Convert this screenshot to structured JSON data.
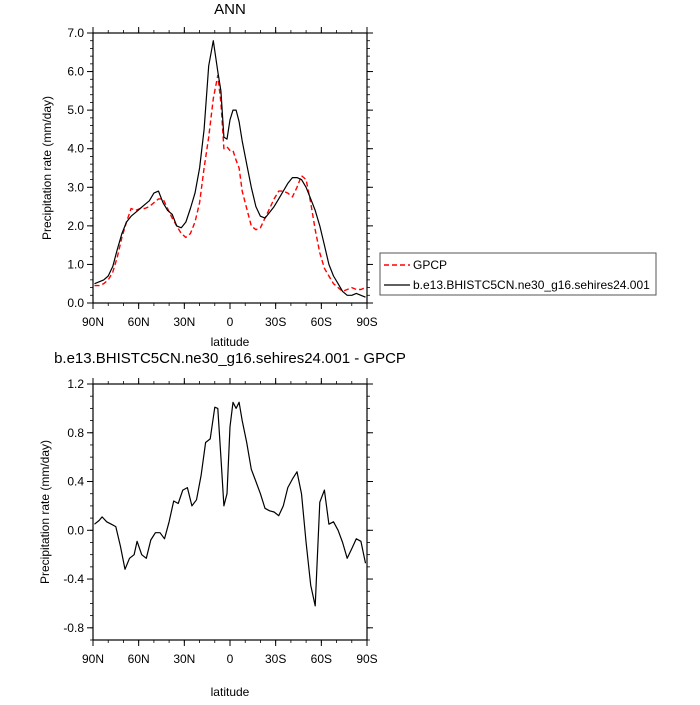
{
  "chart_data": [
    {
      "type": "line",
      "title": "ANN",
      "xlabel": "latitude",
      "ylabel": "Precipitation rate (mm/day)",
      "xlim": [
        90,
        -90
      ],
      "ylim": [
        0,
        7
      ],
      "xticks": [
        {
          "value": 90,
          "label": "90N"
        },
        {
          "value": 60,
          "label": "60N"
        },
        {
          "value": 30,
          "label": "30N"
        },
        {
          "value": 0,
          "label": "0"
        },
        {
          "value": -30,
          "label": "30S"
        },
        {
          "value": -60,
          "label": "60S"
        },
        {
          "value": -90,
          "label": "90S"
        }
      ],
      "yticks": [
        {
          "value": 0,
          "label": "0.0"
        },
        {
          "value": 1,
          "label": "1.0"
        },
        {
          "value": 2,
          "label": "2.0"
        },
        {
          "value": 3,
          "label": "3.0"
        },
        {
          "value": 4,
          "label": "4.0"
        },
        {
          "value": 5,
          "label": "5.0"
        },
        {
          "value": 6,
          "label": "6.0"
        },
        {
          "value": 7,
          "label": "7.0"
        }
      ],
      "legend_position": "right",
      "series": [
        {
          "name": "GPCP",
          "color": "#ff0000",
          "dash": "dashed",
          "x": [
            89,
            86,
            83,
            80,
            77,
            74,
            71,
            68,
            65,
            62,
            59,
            56,
            53,
            50,
            47,
            44,
            41,
            38,
            35,
            32,
            29,
            26,
            23,
            20,
            17,
            14,
            11,
            8,
            6,
            4,
            2,
            0,
            -2,
            -4,
            -6,
            -8,
            -11,
            -14,
            -17,
            -20,
            -23,
            -26,
            -29,
            -32,
            -35,
            -38,
            -41,
            -44,
            -47,
            -50,
            -53,
            -56,
            -59,
            -62,
            -65,
            -68,
            -71,
            -74,
            -77,
            -80,
            -83,
            -86,
            -89
          ],
          "values": [
            0.45,
            0.45,
            0.5,
            0.6,
            0.8,
            1.2,
            1.7,
            2.1,
            2.45,
            2.4,
            2.45,
            2.45,
            2.5,
            2.6,
            2.7,
            2.7,
            2.45,
            2.2,
            2.0,
            1.8,
            1.7,
            1.8,
            2.1,
            2.6,
            3.5,
            4.3,
            5.3,
            5.9,
            5.2,
            4.0,
            4.05,
            3.95,
            3.95,
            3.7,
            3.5,
            2.9,
            2.45,
            2.0,
            1.9,
            1.95,
            2.2,
            2.45,
            2.7,
            2.9,
            2.9,
            2.85,
            2.75,
            3.0,
            3.3,
            3.2,
            2.6,
            1.9,
            1.3,
            0.9,
            0.7,
            0.5,
            0.4,
            0.3,
            0.35,
            0.4,
            0.35,
            0.35,
            0.4
          ]
        },
        {
          "name": "b.e13.BHISTC5CN.ne30_g16.sehires24.001",
          "color": "#000000",
          "dash": "solid",
          "x": [
            89,
            86,
            83,
            80,
            77,
            74,
            71,
            68,
            65,
            62,
            59,
            56,
            53,
            50,
            47,
            44,
            41,
            38,
            35,
            32,
            29,
            26,
            23,
            20,
            17,
            14,
            11,
            8,
            6,
            4,
            2,
            0,
            -2,
            -4,
            -6,
            -8,
            -11,
            -14,
            -17,
            -20,
            -23,
            -26,
            -29,
            -32,
            -35,
            -38,
            -41,
            -44,
            -47,
            -50,
            -53,
            -56,
            -59,
            -62,
            -65,
            -68,
            -71,
            -74,
            -77,
            -80,
            -83,
            -86,
            -89
          ],
          "values": [
            0.5,
            0.55,
            0.6,
            0.7,
            0.95,
            1.4,
            1.8,
            2.1,
            2.25,
            2.35,
            2.45,
            2.55,
            2.65,
            2.85,
            2.9,
            2.6,
            2.4,
            2.3,
            2.0,
            1.95,
            2.1,
            2.45,
            2.85,
            3.5,
            4.5,
            6.15,
            6.8,
            6.0,
            5.5,
            4.3,
            4.25,
            4.75,
            5.0,
            5.0,
            4.7,
            4.2,
            3.6,
            3.0,
            2.5,
            2.25,
            2.2,
            2.35,
            2.5,
            2.7,
            2.9,
            3.1,
            3.25,
            3.25,
            3.2,
            3.0,
            2.7,
            2.4,
            2.0,
            1.5,
            1.0,
            0.7,
            0.5,
            0.3,
            0.2,
            0.2,
            0.25,
            0.2,
            0.15
          ]
        }
      ]
    },
    {
      "type": "line",
      "title": "b.e13.BHISTC5CN.ne30_g16.sehires24.001 - GPCP",
      "xlabel": "latitude",
      "ylabel": "Precipitation rate (mm/day)",
      "xlim": [
        90,
        -90
      ],
      "ylim": [
        -0.9,
        1.2
      ],
      "xticks": [
        {
          "value": 90,
          "label": "90N"
        },
        {
          "value": 60,
          "label": "60N"
        },
        {
          "value": 30,
          "label": "30N"
        },
        {
          "value": 0,
          "label": "0"
        },
        {
          "value": -30,
          "label": "30S"
        },
        {
          "value": -60,
          "label": "60S"
        },
        {
          "value": -90,
          "label": "90S"
        }
      ],
      "yticks": [
        {
          "value": 1.2,
          "label": "1.2"
        },
        {
          "value": 0.8,
          "label": "0.8"
        },
        {
          "value": 0.4,
          "label": "0.4"
        },
        {
          "value": 0.0,
          "label": "0.0"
        },
        {
          "value": -0.4,
          "label": "-0.4"
        },
        {
          "value": -0.8,
          "label": "-0.8"
        }
      ],
      "series": [
        {
          "name": "",
          "color": "#000000",
          "dash": "solid",
          "x": [
            89,
            86,
            84,
            81,
            78,
            75,
            72,
            69,
            66,
            63,
            61,
            58,
            55,
            52,
            49,
            46,
            43,
            40,
            37,
            34,
            31,
            28,
            25,
            22,
            19,
            16,
            13,
            10,
            8,
            6,
            4,
            2,
            0,
            -2,
            -4,
            -6,
            -8,
            -11,
            -14,
            -17,
            -20,
            -23,
            -26,
            -29,
            -32,
            -35,
            -38,
            -41,
            -44,
            -47,
            -50,
            -53,
            -56,
            -59,
            -62,
            -65,
            -68,
            -71,
            -74,
            -77,
            -80,
            -83,
            -86,
            -89
          ],
          "values": [
            0.05,
            0.08,
            0.11,
            0.07,
            0.05,
            0.03,
            -0.13,
            -0.32,
            -0.23,
            -0.2,
            -0.09,
            -0.2,
            -0.23,
            -0.08,
            -0.02,
            -0.02,
            -0.07,
            0.07,
            0.24,
            0.22,
            0.33,
            0.35,
            0.2,
            0.25,
            0.45,
            0.72,
            0.75,
            1.01,
            1.0,
            0.6,
            0.2,
            0.3,
            0.85,
            1.05,
            1.0,
            1.05,
            0.9,
            0.72,
            0.5,
            0.4,
            0.3,
            0.18,
            0.16,
            0.15,
            0.12,
            0.2,
            0.35,
            0.42,
            0.48,
            0.3,
            -0.1,
            -0.45,
            -0.62,
            0.23,
            0.33,
            0.05,
            0.07,
            0.0,
            -0.1,
            -0.23,
            -0.15,
            -0.07,
            -0.09,
            -0.27
          ]
        }
      ]
    }
  ]
}
